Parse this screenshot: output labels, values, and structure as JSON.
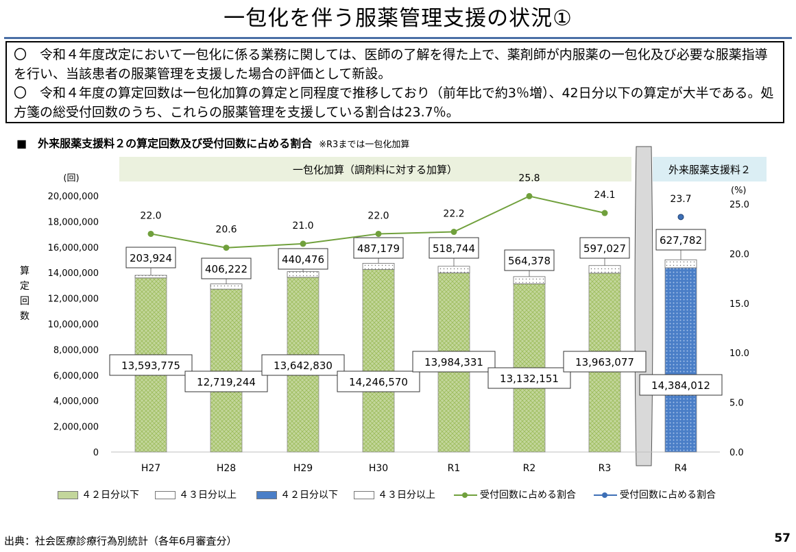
{
  "page": {
    "title": "一包化を伴う服薬管理支援の状況①",
    "summary": [
      "〇　令和４年度改定において一包化に係る業務に関しては、医師の了解を得た上で、薬剤師が内服薬の一包化及び必要な服薬指導を行い、当該患者の服薬管理を支援した場合の評価として新設。",
      "〇　令和４年度の算定回数は一包化加算の算定と同程度で推移しており（前年比で約3％増）、42日分以下の算定が大半である。処方箋の総受付回数のうち、これらの服薬管理を支援している割合は23.7％。"
    ],
    "chart_title": "■　外来服薬支援料２の算定回数及び受付回数に占める割合",
    "chart_note": "※R3までは一包化加算",
    "source": "出典：社会医療診療行為別統計（各年6月審査分）",
    "page_number": "57"
  },
  "chart_data": {
    "type": "bar",
    "stacked": true,
    "categories": [
      "H27",
      "H28",
      "H29",
      "H30",
      "R1",
      "R2",
      "R3",
      "R4"
    ],
    "period_labels": [
      "一包化加算（調剤料に対する加算）",
      "外来服薬支援料２"
    ],
    "y_unit": "(回)",
    "ylabel": "算定回数",
    "ylim": [
      0,
      20000000
    ],
    "yticks": [
      "0",
      "2,000,000",
      "4,000,000",
      "6,000,000",
      "8,000,000",
      "10,000,000",
      "12,000,000",
      "14,000,000",
      "16,000,000",
      "18,000,000",
      "20,000,000"
    ],
    "y2_unit": "(%)",
    "y2lim": [
      0,
      25
    ],
    "y2ticks": [
      "0.0",
      "5.0",
      "10.0",
      "15.0",
      "20.0",
      "25.0"
    ],
    "series": [
      {
        "name": "４２日分以下",
        "values": [
          13593775,
          12719244,
          13642830,
          14246570,
          13984331,
          13132151,
          13963077,
          14384012
        ],
        "labels": [
          "13,593,775",
          "12,719,244",
          "13,642,830",
          "14,246,570",
          "13,984,331",
          "13,132,151",
          "13,963,077",
          "14,384,012"
        ],
        "color": "#c3d69b"
      },
      {
        "name": "４３日分以上",
        "values": [
          203924,
          406222,
          440476,
          487179,
          518744,
          564378,
          597027,
          627782
        ],
        "labels": [
          "203,924",
          "406,222",
          "440,476",
          "487,179",
          "518,744",
          "564,378",
          "597,027",
          "627,782"
        ],
        "color": "#ffffff"
      }
    ],
    "ratio_series": {
      "name": "受付回数に占める割合",
      "values": [
        22.0,
        20.6,
        21.0,
        22.0,
        22.2,
        25.8,
        24.1,
        23.7
      ],
      "labels": [
        "22.0",
        "20.6",
        "21.0",
        "22.0",
        "22.2",
        "25.8",
        "24.1",
        "23.7"
      ],
      "color": "#70a03c",
      "color_r4": "#3d6fb6"
    },
    "legend": [
      "４２日分以下",
      "４３日分以上",
      "４２日分以下",
      "４３日分以上",
      "受付回数に占める割合",
      "受付回数に占める割合"
    ],
    "colors": {
      "green_bar": "#c3d69b",
      "blue_bar": "#4a7ec7",
      "band_green": "#ebf1de",
      "band_blue": "#dbeef4"
    }
  }
}
